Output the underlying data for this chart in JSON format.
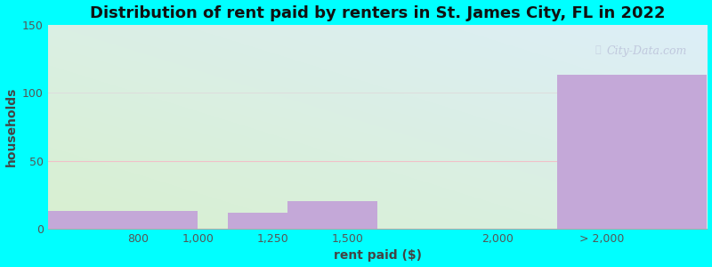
{
  "title": "Distribution of rent paid by renters in St. James City, FL in 2022",
  "xlabel": "rent paid ($)",
  "ylabel": "households",
  "bar_color": "#c4a8d8",
  "xtick_positions": [
    800,
    1000,
    1250,
    1500,
    2000,
    2350
  ],
  "xtick_labels": [
    "800",
    "1,000",
    "1,250",
    "1,500",
    "2,000",
    "> 2,000"
  ],
  "ylim": [
    0,
    150
  ],
  "yticks": [
    0,
    50,
    100,
    150
  ],
  "bg_top_right": "#ddeef8",
  "bg_bottom_left": "#d8f0d0",
  "outer_bg": "#00ffff",
  "title_fontsize": 13,
  "axis_label_fontsize": 10,
  "tick_fontsize": 9,
  "watermark": "City-Data.com",
  "grid_color_100": "#dddddd",
  "grid_color_50": "#f0c0c8",
  "xlim_left": 500,
  "xlim_right": 2700
}
